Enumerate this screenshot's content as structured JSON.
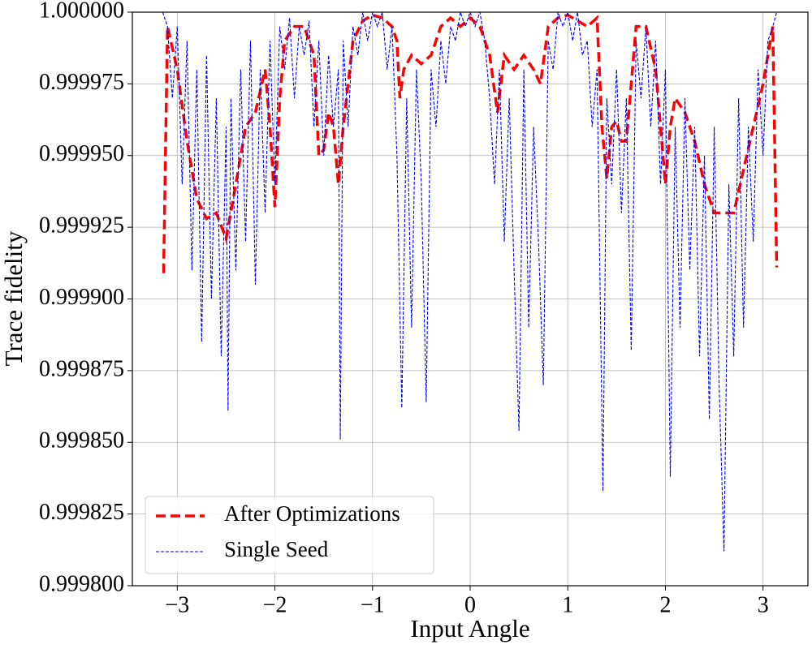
{
  "chart_data": {
    "type": "line",
    "xlabel": "Input Angle",
    "ylabel": "Trace fidelity",
    "xlim": [
      -3.46,
      3.46
    ],
    "ylim": [
      0.9998,
      1.0
    ],
    "xticks": [
      {
        "value": -3,
        "label": "−3"
      },
      {
        "value": -2,
        "label": "−2"
      },
      {
        "value": -1,
        "label": "−1"
      },
      0,
      1,
      2,
      3
    ],
    "yticks": [
      {
        "value": 0.9998,
        "label": "0.999800"
      },
      {
        "value": 0.999825,
        "label": "0.999825"
      },
      {
        "value": 0.99985,
        "label": "0.999850"
      },
      {
        "value": 0.999875,
        "label": "0.999875"
      },
      {
        "value": 0.9999,
        "label": "0.999900"
      },
      {
        "value": 0.999925,
        "label": "0.999925"
      },
      {
        "value": 0.99995,
        "label": "0.999950"
      },
      {
        "value": 0.999975,
        "label": "0.999975"
      },
      {
        "value": 1.0,
        "label": "1.000000"
      }
    ],
    "grid": true,
    "legend": "lower left",
    "series": [
      {
        "name": "After Optimizations",
        "color": "#ff0000",
        "style": "dashed",
        "x": [
          -3.14,
          -3.1,
          -3.0,
          -2.9,
          -2.8,
          -2.7,
          -2.6,
          -2.5,
          -2.4,
          -2.3,
          -2.2,
          -2.1,
          -2.05,
          -2.0,
          -1.95,
          -1.9,
          -1.8,
          -1.7,
          -1.6,
          -1.55,
          -1.5,
          -1.45,
          -1.4,
          -1.35,
          -1.3,
          -1.2,
          -1.1,
          -1.0,
          -0.9,
          -0.8,
          -0.75,
          -0.72,
          -0.68,
          -0.6,
          -0.5,
          -0.4,
          -0.3,
          -0.2,
          -0.1,
          0,
          0.1,
          0.2,
          0.28,
          0.35,
          0.45,
          0.55,
          0.65,
          0.72,
          0.8,
          0.9,
          1.0,
          1.1,
          1.2,
          1.3,
          1.35,
          1.4,
          1.45,
          1.5,
          1.55,
          1.6,
          1.7,
          1.8,
          1.9,
          1.95,
          2.0,
          2.05,
          2.1,
          2.2,
          2.3,
          2.4,
          2.5,
          2.6,
          2.7,
          2.8,
          2.9,
          3.0,
          3.1,
          3.14
        ],
        "values": [
          0.999909,
          0.999995,
          0.99998,
          0.999955,
          0.999935,
          0.999928,
          0.99993,
          0.999921,
          0.99994,
          0.99996,
          0.999965,
          0.99998,
          0.99996,
          0.999932,
          0.99997,
          0.99999,
          0.999995,
          0.999995,
          0.999985,
          0.99995,
          0.999952,
          0.999965,
          0.99996,
          0.99994,
          0.99996,
          0.99999,
          0.999997,
          0.999999,
          0.999998,
          0.999995,
          0.99999,
          0.99997,
          0.99998,
          0.999985,
          0.999982,
          0.999985,
          0.999995,
          0.999998,
          0.999995,
          0.999998,
          0.999995,
          0.999985,
          0.999965,
          0.999985,
          0.99998,
          0.999985,
          0.99998,
          0.999975,
          0.999995,
          0.999998,
          0.999999,
          0.999997,
          0.999995,
          0.999998,
          0.99996,
          0.999942,
          0.99996,
          0.999962,
          0.999955,
          0.999955,
          0.999995,
          0.999995,
          0.99998,
          0.99996,
          0.99994,
          0.99996,
          0.99997,
          0.999965,
          0.999955,
          0.99994,
          0.99993,
          0.99993,
          0.99993,
          0.999945,
          0.99996,
          0.999975,
          0.999995,
          0.999911
        ]
      },
      {
        "name": "Single Seed",
        "color": "#0000ff",
        "style": "dashed",
        "x": [
          -3.15,
          -3.1,
          -3.05,
          -3.0,
          -2.95,
          -2.9,
          -2.85,
          -2.8,
          -2.75,
          -2.7,
          -2.65,
          -2.6,
          -2.55,
          -2.5,
          -2.48,
          -2.45,
          -2.4,
          -2.35,
          -2.3,
          -2.25,
          -2.2,
          -2.15,
          -2.1,
          -2.05,
          -2.0,
          -1.95,
          -1.9,
          -1.85,
          -1.8,
          -1.75,
          -1.7,
          -1.65,
          -1.6,
          -1.55,
          -1.5,
          -1.45,
          -1.4,
          -1.35,
          -1.33,
          -1.3,
          -1.25,
          -1.2,
          -1.15,
          -1.1,
          -1.05,
          -1.0,
          -0.95,
          -0.9,
          -0.85,
          -0.8,
          -0.75,
          -0.7,
          -0.65,
          -0.6,
          -0.55,
          -0.5,
          -0.45,
          -0.4,
          -0.35,
          -0.3,
          -0.25,
          -0.2,
          -0.15,
          -0.1,
          -0.05,
          0,
          0.05,
          0.1,
          0.15,
          0.2,
          0.25,
          0.3,
          0.35,
          0.4,
          0.45,
          0.5,
          0.55,
          0.6,
          0.65,
          0.7,
          0.75,
          0.8,
          0.85,
          0.9,
          0.95,
          1.0,
          1.05,
          1.1,
          1.15,
          1.2,
          1.25,
          1.3,
          1.36,
          1.4,
          1.45,
          1.5,
          1.55,
          1.6,
          1.65,
          1.7,
          1.75,
          1.8,
          1.85,
          1.9,
          1.95,
          2.0,
          2.05,
          2.1,
          2.15,
          2.2,
          2.25,
          2.3,
          2.35,
          2.4,
          2.45,
          2.5,
          2.55,
          2.6,
          2.65,
          2.7,
          2.75,
          2.8,
          2.85,
          2.9,
          2.95,
          3.0,
          3.05,
          3.1,
          3.14
        ],
        "values": [
          1.0,
          0.999995,
          0.99997,
          0.999995,
          0.99994,
          0.99999,
          0.99991,
          0.99998,
          0.999885,
          0.999985,
          0.9999,
          0.99997,
          0.99988,
          0.99996,
          0.999861,
          0.99997,
          0.99991,
          0.99998,
          0.99992,
          0.99999,
          0.999905,
          0.99998,
          0.99993,
          0.99999,
          0.99994,
          0.999995,
          0.99998,
          0.999998,
          0.99997,
          0.999995,
          0.999985,
          0.999997,
          0.99996,
          0.99999,
          0.99995,
          0.999985,
          0.99996,
          0.99998,
          0.999851,
          0.99999,
          0.99996,
          0.999995,
          0.999985,
          1.0,
          0.99999,
          1.0,
          0.999995,
          1.0,
          0.99998,
          0.999995,
          0.99995,
          0.999862,
          0.99997,
          0.99989,
          0.99998,
          0.99994,
          0.999864,
          0.99998,
          0.99996,
          0.99999,
          0.999975,
          0.999995,
          0.99999,
          1.0,
          0.999995,
          1.0,
          0.999995,
          1.0,
          0.99999,
          0.99997,
          0.99994,
          0.99998,
          0.99992,
          0.99997,
          0.99991,
          0.999854,
          0.99998,
          0.99989,
          0.99996,
          0.99992,
          0.99987,
          0.99999,
          0.99998,
          1.0,
          0.999995,
          1.0,
          0.99999,
          1.0,
          0.999985,
          0.99999,
          0.99996,
          0.99998,
          0.999833,
          0.99997,
          0.99994,
          0.99998,
          0.99993,
          0.99997,
          0.999882,
          0.99999,
          0.99997,
          0.999995,
          0.99996,
          0.99999,
          0.99994,
          0.99998,
          0.999838,
          0.99996,
          0.99989,
          0.99997,
          0.99991,
          0.99996,
          0.99988,
          0.99995,
          0.999858,
          0.99996,
          0.99987,
          0.999812,
          0.99994,
          0.99988,
          0.99997,
          0.99989,
          0.99996,
          0.99992,
          0.99998,
          0.99995,
          0.99999,
          0.999995,
          1.0
        ]
      }
    ]
  }
}
